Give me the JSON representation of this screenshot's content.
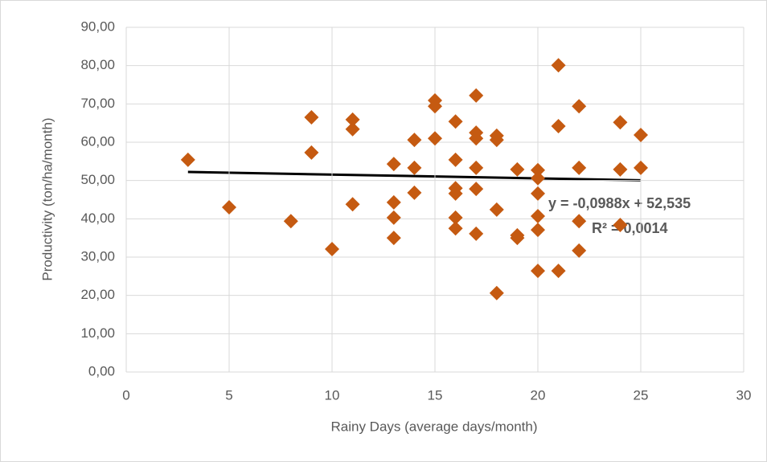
{
  "chart_data": {
    "type": "scatter",
    "x_label": "Rainy Days (average days/month)",
    "y_label": "Productivity (ton/ha/month)",
    "x": [
      3,
      5,
      8,
      9,
      9,
      10,
      11,
      11,
      11,
      13,
      13,
      13,
      13,
      14,
      14,
      14,
      15,
      15,
      15,
      16,
      16,
      16,
      16,
      16,
      16,
      17,
      17,
      17,
      17,
      17,
      17,
      18,
      18,
      18,
      18,
      19,
      19,
      19,
      20,
      20,
      20,
      20,
      20,
      20,
      21,
      21,
      21,
      22,
      22,
      22,
      22,
      24,
      24,
      24,
      25,
      25
    ],
    "values": [
      55.4,
      43.0,
      39.4,
      66.5,
      57.3,
      32.1,
      65.9,
      63.4,
      43.8,
      54.3,
      44.3,
      40.3,
      35.0,
      60.6,
      53.3,
      46.8,
      70.9,
      69.4,
      61.0,
      65.4,
      55.4,
      48.0,
      46.6,
      40.3,
      37.5,
      72.2,
      62.5,
      61.0,
      53.3,
      47.8,
      36.1,
      61.7,
      60.6,
      42.4,
      20.6,
      52.9,
      35.7,
      35.0,
      52.7,
      50.6,
      46.6,
      40.7,
      37.1,
      26.4,
      80.1,
      64.2,
      26.4,
      69.4,
      53.3,
      39.4,
      31.7,
      65.2,
      52.9,
      38.4,
      61.9,
      53.3
    ],
    "color": "#c55a11",
    "trendline": {
      "slope": -0.0988,
      "intercept": 52.535,
      "color": "#000000",
      "equation": "y = -0,0988x + 52,535",
      "r2": "R² = 0,0014"
    },
    "xlim": [
      0,
      30
    ],
    "xticks": [
      0,
      5,
      10,
      15,
      20,
      25,
      30
    ],
    "ylim": [
      0,
      90
    ],
    "yticks": [
      {
        "value": 0,
        "label": "0,00"
      },
      {
        "value": 10,
        "label": "10,00"
      },
      {
        "value": 20,
        "label": "20,00"
      },
      {
        "value": 30,
        "label": "30,00"
      },
      {
        "value": 40,
        "label": "40,00"
      },
      {
        "value": 50,
        "label": "50,00"
      },
      {
        "value": 60,
        "label": "60,00"
      },
      {
        "value": 70,
        "label": "70,00"
      },
      {
        "value": 80,
        "label": "80,00"
      },
      {
        "value": 90,
        "label": "90,00"
      }
    ],
    "grid": true
  }
}
